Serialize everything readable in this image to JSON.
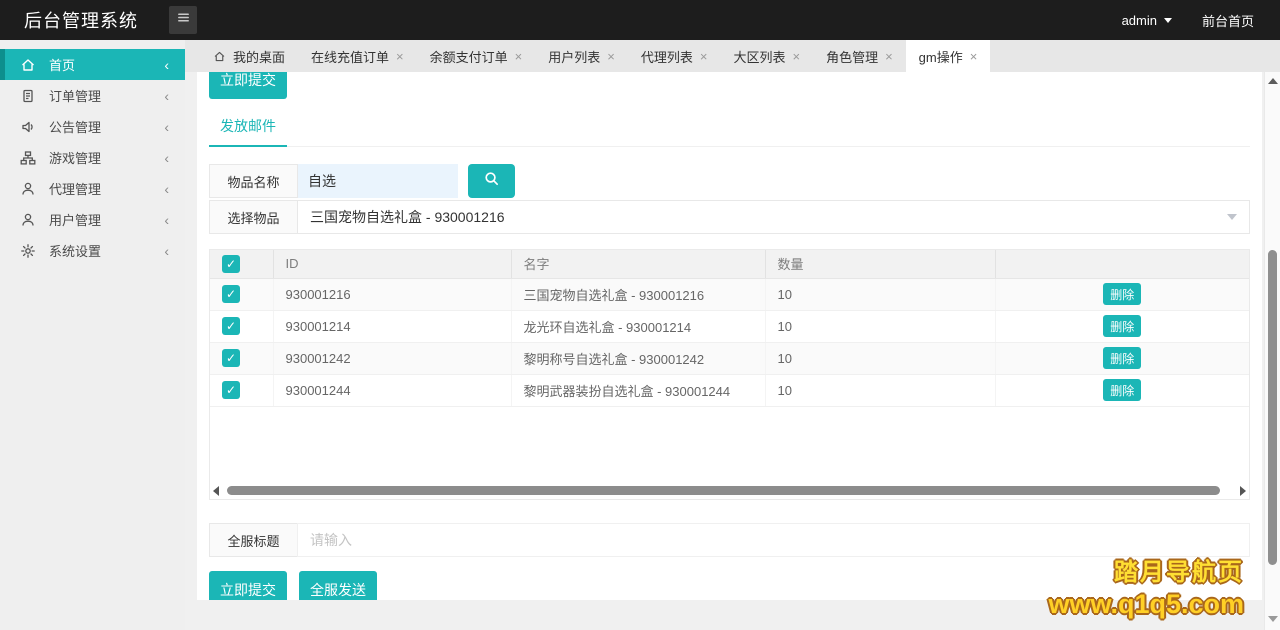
{
  "header": {
    "title": "后台管理系统",
    "user": "admin",
    "front_link": "前台首页"
  },
  "sidebar": {
    "items": [
      {
        "label": "首页",
        "icon": "home",
        "active": true
      },
      {
        "label": "订单管理",
        "icon": "document"
      },
      {
        "label": "公告管理",
        "icon": "speaker"
      },
      {
        "label": "游戏管理",
        "icon": "sitemap"
      },
      {
        "label": "代理管理",
        "icon": "user"
      },
      {
        "label": "用户管理",
        "icon": "user"
      },
      {
        "label": "系统设置",
        "icon": "gear"
      }
    ]
  },
  "tabs": [
    {
      "label": "我的桌面",
      "icon": "home",
      "closable": false
    },
    {
      "label": "在线充值订单",
      "closable": true
    },
    {
      "label": "余额支付订单",
      "closable": true
    },
    {
      "label": "用户列表",
      "closable": true
    },
    {
      "label": "代理列表",
      "closable": true
    },
    {
      "label": "大区列表",
      "closable": true
    },
    {
      "label": "角色管理",
      "closable": true
    },
    {
      "label": "gm操作",
      "closable": true,
      "active": true
    }
  ],
  "panel": {
    "top_button": "立即提交",
    "subtab": "发放邮件",
    "form": {
      "item_name_label": "物品名称",
      "item_name_value": "自选",
      "select_label": "选择物品",
      "select_value": "三国宠物自选礼盒 - 930001216"
    },
    "table": {
      "headers": {
        "id": "ID",
        "name": "名字",
        "qty": "数量"
      },
      "delete_label": "删除",
      "rows": [
        {
          "id": "930001216",
          "name": "三国宠物自选礼盒 - 930001216",
          "qty": "10",
          "checked": true
        },
        {
          "id": "930001214",
          "name": "龙光环自选礼盒 - 930001214",
          "qty": "10",
          "checked": true
        },
        {
          "id": "930001242",
          "name": "黎明称号自选礼盒 - 930001242",
          "qty": "10",
          "checked": true
        },
        {
          "id": "930001244",
          "name": "黎明武器装扮自选礼盒 - 930001244",
          "qty": "10",
          "checked": true
        }
      ]
    },
    "broadcast": {
      "label": "全服标题",
      "placeholder": "请输入"
    },
    "buttons": {
      "submit": "立即提交",
      "send_all": "全服发送"
    }
  },
  "watermark": {
    "line1": "踏月导航页",
    "line2": "www.q1q5.com"
  },
  "colors": {
    "teal": "#1bb6b6",
    "teal_dark": "#0d8f8d",
    "yellow1": "#ffdf33",
    "yellow2": "#ffd026",
    "wm_outline": "#a9671b"
  }
}
